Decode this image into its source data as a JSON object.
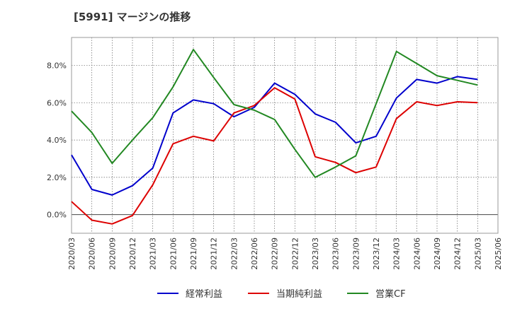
{
  "chart_data": {
    "type": "line",
    "title": "[5991]  マージンの推移",
    "xlabel": "",
    "ylabel": "",
    "ylim": [
      -1.0,
      9.5
    ],
    "yticks": [
      0.0,
      2.0,
      4.0,
      6.0,
      8.0
    ],
    "ytick_labels": [
      "0.0%",
      "2.0%",
      "4.0%",
      "6.0%",
      "8.0%"
    ],
    "x_tick_labels": [
      "2020/03",
      "2020/06",
      "2020/09",
      "2020/12",
      "2021/03",
      "2021/06",
      "2021/09",
      "2021/12",
      "2022/03",
      "2022/06",
      "2022/09",
      "2022/12",
      "2023/03",
      "2023/06",
      "2023/09",
      "2023/12",
      "2024/03",
      "2024/06",
      "2024/09",
      "2024/12",
      "2025/03",
      "2025/06"
    ],
    "categories": [
      "2020/03",
      "2020/06",
      "2020/09",
      "2020/12",
      "2021/03",
      "2021/06",
      "2021/09",
      "2021/12",
      "2022/03",
      "2022/06",
      "2022/09",
      "2022/12",
      "2023/03",
      "2023/06",
      "2023/09",
      "2023/12",
      "2024/03",
      "2024/06",
      "2024/09",
      "2024/12",
      "2025/03"
    ],
    "grid": true,
    "legend_position": "bottom",
    "series": [
      {
        "name": "経常利益",
        "color": "#0000cc",
        "values": [
          3.2,
          1.35,
          1.05,
          1.55,
          2.5,
          5.45,
          6.15,
          5.95,
          5.25,
          5.75,
          7.05,
          6.45,
          5.4,
          4.95,
          3.85,
          4.2,
          6.25,
          7.25,
          7.05,
          7.4,
          7.25
        ]
      },
      {
        "name": "当期純利益",
        "color": "#dd0000",
        "values": [
          0.7,
          -0.3,
          -0.5,
          -0.05,
          1.6,
          3.8,
          4.2,
          3.95,
          5.45,
          5.85,
          6.8,
          6.2,
          3.1,
          2.8,
          2.25,
          2.55,
          5.15,
          6.05,
          5.85,
          6.05,
          6.0
        ]
      },
      {
        "name": "営業CF",
        "color": "#228822",
        "values": [
          5.55,
          4.4,
          2.75,
          4.0,
          5.2,
          6.85,
          8.85,
          7.35,
          5.9,
          5.6,
          5.1,
          3.5,
          2.0,
          2.55,
          3.15,
          5.95,
          8.75,
          8.1,
          7.45,
          7.2,
          6.95
        ]
      }
    ]
  }
}
